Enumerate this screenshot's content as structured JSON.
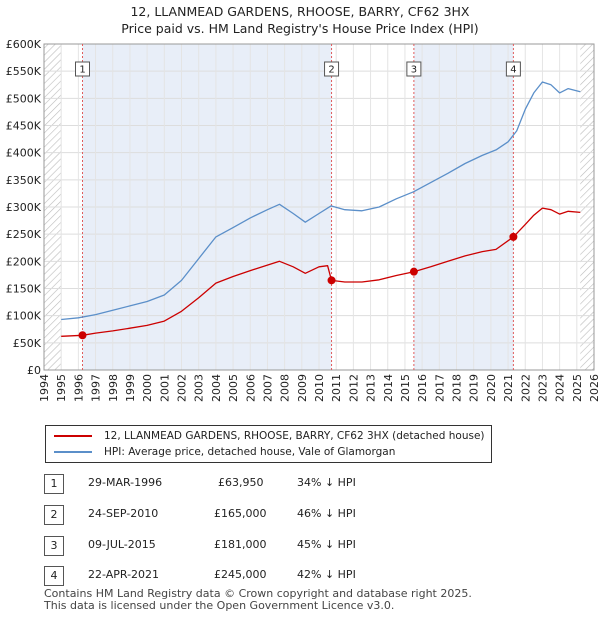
{
  "title": {
    "line1": "12, LLANMEAD GARDENS, RHOOSE, BARRY, CF62 3HX",
    "line2": "Price paid vs. HM Land Registry's House Price Index (HPI)"
  },
  "legend": {
    "property_label": "12, LLANMEAD GARDENS, RHOOSE, BARRY, CF62 3HX (detached house)",
    "hpi_label": "HPI: Average price, detached house, Vale of Glamorgan"
  },
  "colors": {
    "property": "#cc0000",
    "hpi": "#5b8fc9",
    "band": "#e8eef8",
    "hatch": "#bbbbbb",
    "marker_line": "#e05c5c"
  },
  "transactions": [
    {
      "num": "1",
      "date": "29-MAR-1996",
      "price": "£63,950",
      "delta": "34% ↓ HPI"
    },
    {
      "num": "2",
      "date": "24-SEP-2010",
      "price": "£165,000",
      "delta": "46% ↓ HPI"
    },
    {
      "num": "3",
      "date": "09-JUL-2015",
      "price": "£181,000",
      "delta": "45% ↓ HPI"
    },
    {
      "num": "4",
      "date": "22-APR-2021",
      "price": "£245,000",
      "delta": "42% ↓ HPI"
    }
  ],
  "footer": {
    "line1": "Contains HM Land Registry data © Crown copyright and database right 2025.",
    "line2": "This data is licensed under the Open Government Licence v3.0."
  },
  "chart_data": {
    "type": "line",
    "xlim": [
      1994,
      2026
    ],
    "ylim": [
      0,
      600000
    ],
    "x_ticks": [
      "1994",
      "1995",
      "1996",
      "1997",
      "1998",
      "1999",
      "2000",
      "2001",
      "2002",
      "2003",
      "2004",
      "2005",
      "2006",
      "2007",
      "2008",
      "2009",
      "2010",
      "2011",
      "2012",
      "2013",
      "2014",
      "2015",
      "2016",
      "2017",
      "2018",
      "2019",
      "2020",
      "2021",
      "2022",
      "2023",
      "2024",
      "2025",
      "2026"
    ],
    "y_ticks": [
      {
        "value": 0,
        "label": "£0"
      },
      {
        "value": 50000,
        "label": "£50K"
      },
      {
        "value": 100000,
        "label": "£100K"
      },
      {
        "value": 150000,
        "label": "£150K"
      },
      {
        "value": 200000,
        "label": "£200K"
      },
      {
        "value": 250000,
        "label": "£250K"
      },
      {
        "value": 300000,
        "label": "£300K"
      },
      {
        "value": 350000,
        "label": "£350K"
      },
      {
        "value": 400000,
        "label": "£400K"
      },
      {
        "value": 450000,
        "label": "£450K"
      },
      {
        "value": 500000,
        "label": "£500K"
      },
      {
        "value": 550000,
        "label": "£550K"
      },
      {
        "value": 600000,
        "label": "£600K"
      }
    ],
    "data_range": [
      1995.0,
      2025.2
    ],
    "series": [
      {
        "name": "HPI: Average price, detached house, Vale of Glamorgan",
        "points": [
          [
            1995.0,
            93000
          ],
          [
            1996.0,
            96000
          ],
          [
            1997.0,
            102000
          ],
          [
            1998.0,
            110000
          ],
          [
            1999.0,
            118000
          ],
          [
            2000.0,
            126000
          ],
          [
            2001.0,
            138000
          ],
          [
            2002.0,
            165000
          ],
          [
            2003.0,
            205000
          ],
          [
            2004.0,
            245000
          ],
          [
            2005.0,
            262000
          ],
          [
            2006.0,
            280000
          ],
          [
            2007.0,
            295000
          ],
          [
            2007.7,
            305000
          ],
          [
            2008.5,
            288000
          ],
          [
            2009.2,
            272000
          ],
          [
            2010.0,
            288000
          ],
          [
            2010.7,
            302000
          ],
          [
            2011.5,
            295000
          ],
          [
            2012.5,
            293000
          ],
          [
            2013.5,
            300000
          ],
          [
            2014.5,
            315000
          ],
          [
            2015.5,
            328000
          ],
          [
            2016.5,
            345000
          ],
          [
            2017.5,
            362000
          ],
          [
            2018.5,
            380000
          ],
          [
            2019.5,
            395000
          ],
          [
            2020.3,
            405000
          ],
          [
            2021.0,
            420000
          ],
          [
            2021.5,
            440000
          ],
          [
            2022.0,
            480000
          ],
          [
            2022.5,
            510000
          ],
          [
            2023.0,
            530000
          ],
          [
            2023.5,
            525000
          ],
          [
            2024.0,
            510000
          ],
          [
            2024.5,
            518000
          ],
          [
            2025.2,
            512000
          ]
        ]
      },
      {
        "name": "12, LLANMEAD GARDENS, RHOOSE, BARRY, CF62 3HX (detached house)",
        "points": [
          [
            1995.0,
            62000
          ],
          [
            1996.24,
            63950
          ],
          [
            1997.0,
            68000
          ],
          [
            1998.0,
            72000
          ],
          [
            1999.0,
            77000
          ],
          [
            2000.0,
            82000
          ],
          [
            2001.0,
            90000
          ],
          [
            2002.0,
            108000
          ],
          [
            2003.0,
            133000
          ],
          [
            2004.0,
            160000
          ],
          [
            2005.0,
            172000
          ],
          [
            2006.0,
            183000
          ],
          [
            2007.0,
            193000
          ],
          [
            2007.7,
            200000
          ],
          [
            2008.5,
            190000
          ],
          [
            2009.2,
            178000
          ],
          [
            2010.0,
            190000
          ],
          [
            2010.5,
            192000
          ],
          [
            2010.73,
            165000
          ],
          [
            2011.5,
            162000
          ],
          [
            2012.5,
            162000
          ],
          [
            2013.5,
            166000
          ],
          [
            2014.5,
            174000
          ],
          [
            2015.52,
            181000
          ],
          [
            2016.5,
            190000
          ],
          [
            2017.5,
            200000
          ],
          [
            2018.5,
            210000
          ],
          [
            2019.5,
            218000
          ],
          [
            2020.3,
            222000
          ],
          [
            2021.31,
            245000
          ],
          [
            2022.0,
            268000
          ],
          [
            2022.5,
            285000
          ],
          [
            2023.0,
            298000
          ],
          [
            2023.5,
            295000
          ],
          [
            2024.0,
            287000
          ],
          [
            2024.5,
            292000
          ],
          [
            2025.2,
            290000
          ]
        ]
      }
    ],
    "sales": [
      {
        "label": "1",
        "x": 1996.24,
        "price": 63950
      },
      {
        "label": "2",
        "x": 2010.73,
        "price": 165000
      },
      {
        "label": "3",
        "x": 2015.52,
        "price": 181000
      },
      {
        "label": "4",
        "x": 2021.31,
        "price": 245000
      }
    ]
  }
}
